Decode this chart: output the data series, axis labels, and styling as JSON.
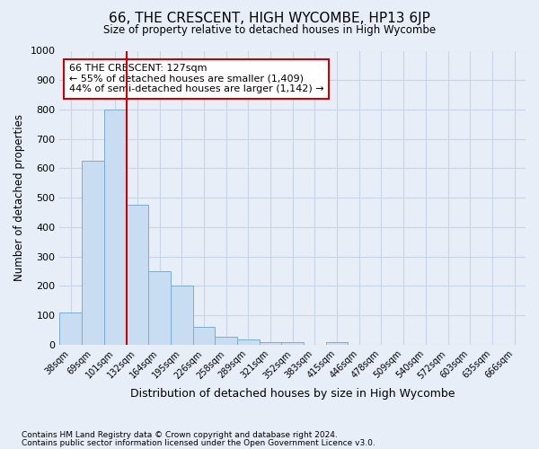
{
  "title": "66, THE CRESCENT, HIGH WYCOMBE, HP13 6JP",
  "subtitle": "Size of property relative to detached houses in High Wycombe",
  "xlabel": "Distribution of detached houses by size in High Wycombe",
  "ylabel": "Number of detached properties",
  "footnote1": "Contains HM Land Registry data © Crown copyright and database right 2024.",
  "footnote2": "Contains public sector information licensed under the Open Government Licence v3.0.",
  "bin_labels": [
    "38sqm",
    "69sqm",
    "101sqm",
    "132sqm",
    "164sqm",
    "195sqm",
    "226sqm",
    "258sqm",
    "289sqm",
    "321sqm",
    "352sqm",
    "383sqm",
    "415sqm",
    "446sqm",
    "478sqm",
    "509sqm",
    "540sqm",
    "572sqm",
    "603sqm",
    "635sqm",
    "666sqm"
  ],
  "bar_values": [
    110,
    625,
    800,
    475,
    250,
    200,
    60,
    28,
    18,
    10,
    10,
    0,
    10,
    0,
    0,
    0,
    0,
    0,
    0,
    0,
    0
  ],
  "bar_color": "#c9ddf2",
  "bar_edge_color": "#7aadd4",
  "vline_x_index": 2.5,
  "vline_color": "#cc0000",
  "annotation_text": "66 THE CRESCENT: 127sqm\n← 55% of detached houses are smaller (1,409)\n44% of semi-detached houses are larger (1,142) →",
  "annotation_box_color": "#ffffff",
  "annotation_box_edge": "#cc0000",
  "ylim": [
    0,
    1000
  ],
  "yticks": [
    0,
    100,
    200,
    300,
    400,
    500,
    600,
    700,
    800,
    900,
    1000
  ],
  "grid_color": "#c8d4e8",
  "background_color": "#e8eef8"
}
